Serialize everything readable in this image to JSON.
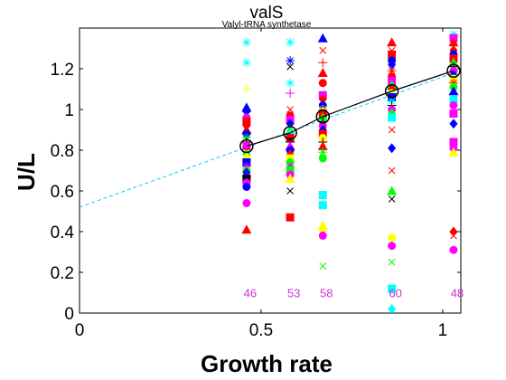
{
  "chart_data": {
    "type": "scatter",
    "title": "valS",
    "subtitle": "Valyl-tRNA synthetase",
    "xlabel": "Growth rate",
    "ylabel": "U/L",
    "xlim": [
      0,
      1.05
    ],
    "ylim": [
      0,
      1.4
    ],
    "xticks": [
      0,
      0.5,
      1
    ],
    "xtick_labels": [
      "0",
      "0.5",
      "1"
    ],
    "yticks": [
      0,
      0.2,
      0.4,
      0.6,
      0.8,
      1.0,
      1.2
    ],
    "ytick_labels": [
      "0",
      "0.2",
      "0.4",
      "0.6",
      "0.8",
      "1",
      "1.2"
    ],
    "grid": false,
    "fit_line": {
      "intercept": 0.52,
      "slope": 0.64,
      "color": "#00ccff",
      "style": "dashed"
    },
    "mean_curve": {
      "x": [
        0.46,
        0.58,
        0.67,
        0.86,
        1.03
      ],
      "y": [
        0.82,
        0.885,
        0.965,
        1.09,
        1.19
      ],
      "color": "#000000"
    },
    "counts": {
      "x": [
        0.46,
        0.58,
        0.67,
        0.86,
        1.03
      ],
      "labels": [
        "46",
        "53",
        "58",
        "60",
        "48"
      ],
      "y": 0.1,
      "color": "#cc33cc"
    },
    "groups": [
      {
        "x": 0.46,
        "points": [
          {
            "y": 1.33,
            "m": "*",
            "c": "#00ffff"
          },
          {
            "y": 1.23,
            "m": "*",
            "c": "#00ffff"
          },
          {
            "y": 1.1,
            "m": "+",
            "c": "#ffff00"
          },
          {
            "y": 1.01,
            "m": "^",
            "c": "#0000ff"
          },
          {
            "y": 0.99,
            "m": "d",
            "c": "#0000ff"
          },
          {
            "y": 0.96,
            "m": "o",
            "c": "#ff00ff"
          },
          {
            "y": 0.94,
            "m": "s",
            "c": "#ff0000"
          },
          {
            "y": 0.92,
            "m": "d",
            "c": "#ff0000"
          },
          {
            "y": 0.9,
            "m": "^",
            "c": "#ff0000"
          },
          {
            "y": 0.88,
            "m": "o",
            "c": "#0000ff"
          },
          {
            "y": 0.86,
            "m": "*",
            "c": "#00ff00"
          },
          {
            "y": 0.84,
            "m": "+",
            "c": "#000000"
          },
          {
            "y": 0.82,
            "m": "s",
            "c": "#ff00ff"
          },
          {
            "y": 0.8,
            "m": "x",
            "c": "#ff0000"
          },
          {
            "y": 0.78,
            "m": "d",
            "c": "#00ff00"
          },
          {
            "y": 0.77,
            "m": "^",
            "c": "#ffff00"
          },
          {
            "y": 0.75,
            "m": "o",
            "c": "#ffff00"
          },
          {
            "y": 0.74,
            "m": "s",
            "c": "#0000ff"
          },
          {
            "y": 0.72,
            "m": "*",
            "c": "#ff00ff"
          },
          {
            "y": 0.7,
            "m": "o",
            "c": "#00ff00"
          },
          {
            "y": 0.69,
            "m": "d",
            "c": "#0000ff"
          },
          {
            "y": 0.67,
            "m": "+",
            "c": "#ff00ff"
          },
          {
            "y": 0.66,
            "m": "s",
            "c": "#000000"
          },
          {
            "y": 0.64,
            "m": "o",
            "c": "#ff00ff"
          },
          {
            "y": 0.62,
            "m": "o",
            "c": "#0000ff"
          },
          {
            "y": 0.54,
            "m": "o",
            "c": "#ff00ff"
          },
          {
            "y": 0.41,
            "m": "^",
            "c": "#ff0000"
          }
        ]
      },
      {
        "x": 0.58,
        "points": [
          {
            "y": 1.33,
            "m": "*",
            "c": "#00ffff"
          },
          {
            "y": 1.24,
            "m": "*",
            "c": "#0000ff"
          },
          {
            "y": 1.21,
            "m": "x",
            "c": "#000000"
          },
          {
            "y": 1.13,
            "m": "*",
            "c": "#00ffff"
          },
          {
            "y": 1.08,
            "m": "+",
            "c": "#ff00ff"
          },
          {
            "y": 1.0,
            "m": "x",
            "c": "#ff0000"
          },
          {
            "y": 0.97,
            "m": "o",
            "c": "#ff0000"
          },
          {
            "y": 0.95,
            "m": "s",
            "c": "#ff00ff"
          },
          {
            "y": 0.93,
            "m": "d",
            "c": "#0000ff"
          },
          {
            "y": 0.9,
            "m": "^",
            "c": "#00ff00"
          },
          {
            "y": 0.88,
            "m": "o",
            "c": "#00ffff"
          },
          {
            "y": 0.86,
            "m": "s",
            "c": "#ff0000"
          },
          {
            "y": 0.84,
            "m": "+",
            "c": "#000000"
          },
          {
            "y": 0.82,
            "m": "^",
            "c": "#ff00ff"
          },
          {
            "y": 0.8,
            "m": "o",
            "c": "#0000ff"
          },
          {
            "y": 0.78,
            "m": "d",
            "c": "#ff0000"
          },
          {
            "y": 0.76,
            "m": "s",
            "c": "#ffff00"
          },
          {
            "y": 0.74,
            "m": "o",
            "c": "#00ff00"
          },
          {
            "y": 0.72,
            "m": "*",
            "c": "#ff00ff"
          },
          {
            "y": 0.7,
            "m": "s",
            "c": "#00ff00"
          },
          {
            "y": 0.68,
            "m": "o",
            "c": "#ff00ff"
          },
          {
            "y": 0.66,
            "m": "^",
            "c": "#ffff00"
          },
          {
            "y": 0.6,
            "m": "x",
            "c": "#000000"
          },
          {
            "y": 0.47,
            "m": "s",
            "c": "#ff0000"
          }
        ]
      },
      {
        "x": 0.67,
        "points": [
          {
            "y": 1.35,
            "m": "^",
            "c": "#0000ff"
          },
          {
            "y": 1.29,
            "m": "x",
            "c": "#ff0000"
          },
          {
            "y": 1.23,
            "m": "+",
            "c": "#ff0000"
          },
          {
            "y": 1.18,
            "m": "^",
            "c": "#ff0000"
          },
          {
            "y": 1.13,
            "m": "o",
            "c": "#ff0000"
          },
          {
            "y": 1.07,
            "m": "s",
            "c": "#ff00ff"
          },
          {
            "y": 1.05,
            "m": "d",
            "c": "#ff0000"
          },
          {
            "y": 1.02,
            "m": "o",
            "c": "#0000ff"
          },
          {
            "y": 1.0,
            "m": "*",
            "c": "#ffff00"
          },
          {
            "y": 0.98,
            "m": "s",
            "c": "#ff0000"
          },
          {
            "y": 0.96,
            "m": "^",
            "c": "#00ff00"
          },
          {
            "y": 0.94,
            "m": "+",
            "c": "#000000"
          },
          {
            "y": 0.92,
            "m": "o",
            "c": "#ff00ff"
          },
          {
            "y": 0.9,
            "m": "d",
            "c": "#0000ff"
          },
          {
            "y": 0.88,
            "m": "s",
            "c": "#ff0000"
          },
          {
            "y": 0.86,
            "m": "o",
            "c": "#ffff00"
          },
          {
            "y": 0.84,
            "m": "+",
            "c": "#000000"
          },
          {
            "y": 0.82,
            "m": "^",
            "c": "#ff0000"
          },
          {
            "y": 0.79,
            "m": "*",
            "c": "#00ff00"
          },
          {
            "y": 0.76,
            "m": "o",
            "c": "#00ff00"
          },
          {
            "y": 0.58,
            "m": "s",
            "c": "#00ffff"
          },
          {
            "y": 0.53,
            "m": "s",
            "c": "#00ffff"
          },
          {
            "y": 0.43,
            "m": "^",
            "c": "#ffff00"
          },
          {
            "y": 0.41,
            "m": "o",
            "c": "#ffff00"
          },
          {
            "y": 0.38,
            "m": "o",
            "c": "#ff00ff"
          },
          {
            "y": 0.23,
            "m": "x",
            "c": "#00ff00"
          }
        ]
      },
      {
        "x": 0.86,
        "points": [
          {
            "y": 1.33,
            "m": "^",
            "c": "#ff0000"
          },
          {
            "y": 1.29,
            "m": "x",
            "c": "#ff0000"
          },
          {
            "y": 1.27,
            "m": "s",
            "c": "#ff0000"
          },
          {
            "y": 1.24,
            "m": "o",
            "c": "#0000ff"
          },
          {
            "y": 1.22,
            "m": "d",
            "c": "#0000ff"
          },
          {
            "y": 1.19,
            "m": "*",
            "c": "#ff0000"
          },
          {
            "y": 1.16,
            "m": "o",
            "c": "#ff0000"
          },
          {
            "y": 1.14,
            "m": "s",
            "c": "#ff00ff"
          },
          {
            "y": 1.12,
            "m": "^",
            "c": "#00ff00"
          },
          {
            "y": 1.1,
            "m": "d",
            "c": "#ff0000"
          },
          {
            "y": 1.08,
            "m": "o",
            "c": "#ffff00"
          },
          {
            "y": 1.06,
            "m": "s",
            "c": "#0000ff"
          },
          {
            "y": 1.04,
            "m": "*",
            "c": "#00ffff"
          },
          {
            "y": 1.02,
            "m": "+",
            "c": "#000000"
          },
          {
            "y": 1.0,
            "m": "o",
            "c": "#ff00ff"
          },
          {
            "y": 0.98,
            "m": "d",
            "c": "#00ff00"
          },
          {
            "y": 0.96,
            "m": "s",
            "c": "#00ffff"
          },
          {
            "y": 0.9,
            "m": "x",
            "c": "#ff0000"
          },
          {
            "y": 0.81,
            "m": "d",
            "c": "#0000ff"
          },
          {
            "y": 0.7,
            "m": "x",
            "c": "#ff0000"
          },
          {
            "y": 0.6,
            "m": "^",
            "c": "#00ff00"
          },
          {
            "y": 0.56,
            "m": "x",
            "c": "#000000"
          },
          {
            "y": 0.37,
            "m": "o",
            "c": "#ffff00"
          },
          {
            "y": 0.33,
            "m": "o",
            "c": "#ff00ff"
          },
          {
            "y": 0.25,
            "m": "x",
            "c": "#00ff00"
          },
          {
            "y": 0.12,
            "m": "s",
            "c": "#00ffff"
          },
          {
            "y": 0.02,
            "m": "d",
            "c": "#00ffff"
          }
        ]
      },
      {
        "x": 1.03,
        "points": [
          {
            "y": 1.37,
            "m": "*",
            "c": "#00ffff"
          },
          {
            "y": 1.35,
            "m": "s",
            "c": "#ff00ff"
          },
          {
            "y": 1.33,
            "m": "^",
            "c": "#ff0000"
          },
          {
            "y": 1.31,
            "m": "x",
            "c": "#ff0000"
          },
          {
            "y": 1.29,
            "m": "d",
            "c": "#ff0000"
          },
          {
            "y": 1.27,
            "m": "o",
            "c": "#0000ff"
          },
          {
            "y": 1.25,
            "m": "s",
            "c": "#ff0000"
          },
          {
            "y": 1.23,
            "m": "^",
            "c": "#00ff00"
          },
          {
            "y": 1.21,
            "m": "+",
            "c": "#000000"
          },
          {
            "y": 1.19,
            "m": "o",
            "c": "#ff00ff"
          },
          {
            "y": 1.17,
            "m": "d",
            "c": "#0000ff"
          },
          {
            "y": 1.15,
            "m": "s",
            "c": "#ffff00"
          },
          {
            "y": 1.13,
            "m": "*",
            "c": "#ff0000"
          },
          {
            "y": 1.11,
            "m": "o",
            "c": "#00ff00"
          },
          {
            "y": 1.09,
            "m": "^",
            "c": "#0000ff"
          },
          {
            "y": 1.05,
            "m": "s",
            "c": "#00ffff"
          },
          {
            "y": 1.02,
            "m": "o",
            "c": "#ff00ff"
          },
          {
            "y": 0.98,
            "m": "s",
            "c": "#ff00ff"
          },
          {
            "y": 0.93,
            "m": "d",
            "c": "#0000ff"
          },
          {
            "y": 0.84,
            "m": "s",
            "c": "#ff00ff"
          },
          {
            "y": 0.81,
            "m": "o",
            "c": "#ff00ff"
          },
          {
            "y": 0.79,
            "m": "^",
            "c": "#ffff00"
          },
          {
            "y": 0.4,
            "m": "d",
            "c": "#ff0000"
          },
          {
            "y": 0.38,
            "m": "x",
            "c": "#ff0000"
          },
          {
            "y": 0.31,
            "m": "o",
            "c": "#ff00ff"
          }
        ]
      }
    ]
  }
}
